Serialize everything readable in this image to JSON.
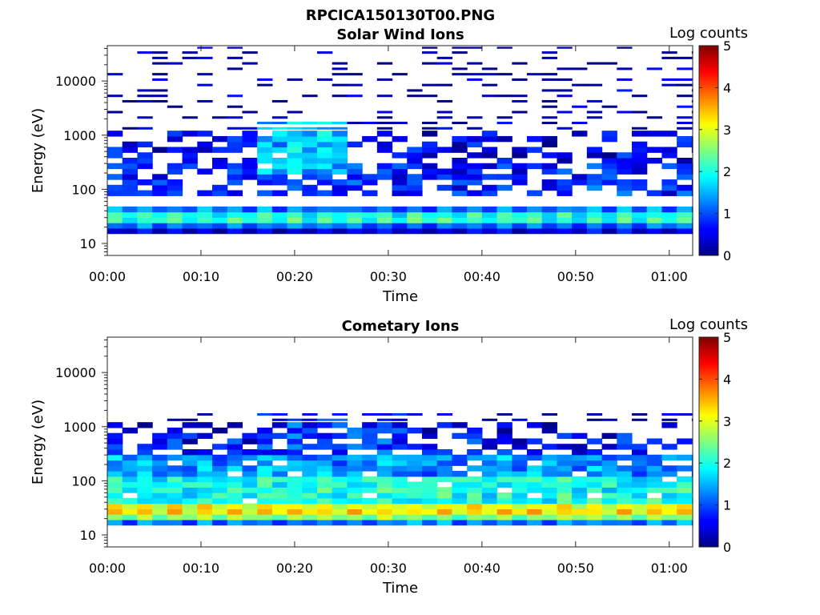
{
  "figure_title": "RPCICA150130T00.PNG",
  "colormap": "jet",
  "chart_data": [
    {
      "type": "heatmap",
      "title": "Solar Wind Ions",
      "xlabel": "Time",
      "ylabel": "Energy (eV)",
      "colorbar_label": "Log counts",
      "colorbar_range": [
        0,
        5
      ],
      "colorbar_ticks": [
        "0",
        "1",
        "2",
        "3",
        "4",
        "5"
      ],
      "y_scale": "log",
      "ylim": [
        6,
        45000
      ],
      "y_ticks": [
        {
          "value": 10,
          "label": "10"
        },
        {
          "value": 100,
          "label": "100"
        },
        {
          "value": 1000,
          "label": "1000"
        },
        {
          "value": 10000,
          "label": "10000"
        }
      ],
      "x_unit": "minutes after 00:00",
      "xlim": [
        0,
        62.5
      ],
      "x_ticks": [
        {
          "value": 0,
          "label": "00:00"
        },
        {
          "value": 10,
          "label": "00:10"
        },
        {
          "value": 20,
          "label": "00:20"
        },
        {
          "value": 30,
          "label": "00:30"
        },
        {
          "value": 40,
          "label": "00:40"
        },
        {
          "value": 50,
          "label": "00:50"
        },
        {
          "value": 60,
          "label": "01:00"
        }
      ],
      "time_bin_minutes": 1.6,
      "energy_bins_per_decade": 10,
      "bands": [
        {
          "from": 35,
          "to": 45,
          "level": 1.1
        },
        {
          "from": 28,
          "to": 35,
          "level": 1.85
        },
        {
          "from": 23,
          "to": 28,
          "level": 1.95
        },
        {
          "from": 19,
          "to": 23,
          "level": 1.05
        },
        {
          "from": 15,
          "to": 19,
          "level": 0.3
        }
      ],
      "regions": [
        {
          "from": 80,
          "to": 320,
          "level": 0.75
        },
        {
          "from": 320,
          "to": 1100,
          "level": 0.45
        },
        {
          "from": 1100,
          "to": 44000,
          "level": 0.15
        }
      ],
      "hot_regions": [
        {
          "t0": 16,
          "t1": 26,
          "from": 200,
          "to": 1800,
          "level": 1.5
        }
      ]
    },
    {
      "type": "heatmap",
      "title": "Cometary Ions",
      "xlabel": "Time",
      "ylabel": "Energy (eV)",
      "colorbar_label": "Log counts",
      "colorbar_range": [
        0,
        5
      ],
      "colorbar_ticks": [
        "0",
        "1",
        "2",
        "3",
        "4",
        "5"
      ],
      "y_scale": "log",
      "ylim": [
        6,
        45000
      ],
      "y_ticks": [
        {
          "value": 10,
          "label": "10"
        },
        {
          "value": 100,
          "label": "100"
        },
        {
          "value": 1000,
          "label": "1000"
        },
        {
          "value": 10000,
          "label": "10000"
        }
      ],
      "x_unit": "minutes after 00:00",
      "xlim": [
        0,
        62.5
      ],
      "x_ticks": [
        {
          "value": 0,
          "label": "00:00"
        },
        {
          "value": 10,
          "label": "00:10"
        },
        {
          "value": 20,
          "label": "00:20"
        },
        {
          "value": 30,
          "label": "00:30"
        },
        {
          "value": 40,
          "label": "00:40"
        },
        {
          "value": 50,
          "label": "00:50"
        },
        {
          "value": 60,
          "label": "01:00"
        }
      ],
      "time_bin_minutes": 1.6,
      "energy_bins_per_decade": 10,
      "bands": [
        {
          "from": 35,
          "to": 42,
          "level": 2.2
        },
        {
          "from": 28,
          "to": 35,
          "level": 2.9
        },
        {
          "from": 23,
          "to": 28,
          "level": 3.1
        },
        {
          "from": 19,
          "to": 23,
          "level": 2.4
        },
        {
          "from": 15,
          "to": 19,
          "level": 1.1
        }
      ],
      "regions": [
        {
          "from": 42,
          "to": 120,
          "level": 1.9
        },
        {
          "from": 120,
          "to": 300,
          "level": 1.3
        },
        {
          "from": 300,
          "to": 700,
          "level": 0.6
        },
        {
          "from": 700,
          "to": 2000,
          "level": 0.25
        }
      ],
      "hot_regions": [
        {
          "t0": 16,
          "t1": 32,
          "from": 300,
          "to": 1800,
          "level": 0.8
        }
      ]
    }
  ]
}
